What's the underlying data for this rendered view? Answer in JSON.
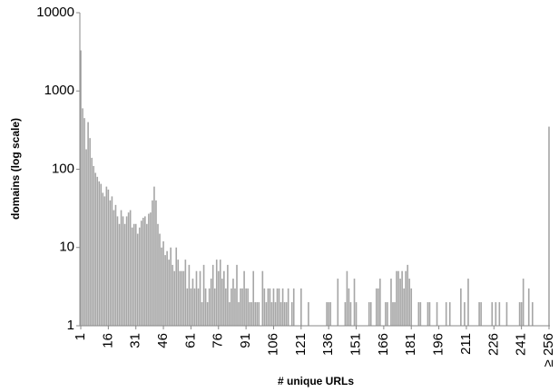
{
  "chart_data": {
    "type": "bar",
    "y_label": "domains (log scale)",
    "x_label": "# unique URLs",
    "log_scale": true,
    "grid": false,
    "color": "#a6a6a6",
    "x": [
      1,
      2,
      3,
      4,
      5,
      6,
      7,
      8,
      9,
      10,
      11,
      12,
      13,
      14,
      15,
      16,
      17,
      18,
      19,
      20,
      21,
      22,
      23,
      24,
      25,
      26,
      27,
      28,
      29,
      30,
      31,
      32,
      33,
      34,
      35,
      36,
      37,
      38,
      39,
      40,
      41,
      42,
      43,
      44,
      45,
      46,
      47,
      48,
      49,
      50,
      51,
      52,
      53,
      54,
      55,
      56,
      57,
      58,
      59,
      60,
      61,
      62,
      63,
      64,
      65,
      66,
      67,
      68,
      69,
      70,
      71,
      72,
      73,
      74,
      75,
      76,
      77,
      78,
      79,
      80,
      81,
      82,
      83,
      84,
      85,
      86,
      87,
      88,
      89,
      90,
      91,
      92,
      93,
      94,
      95,
      96,
      97,
      98,
      99,
      100,
      101,
      102,
      103,
      104,
      105,
      106,
      107,
      108,
      109,
      110,
      111,
      112,
      113,
      114,
      115,
      116,
      117,
      118,
      119,
      120,
      121,
      122,
      123,
      124,
      125,
      126,
      127,
      128,
      129,
      130,
      131,
      132,
      133,
      134,
      135,
      136,
      137,
      138,
      139,
      140,
      141,
      142,
      143,
      144,
      145,
      146,
      147,
      148,
      149,
      150,
      151,
      152,
      153,
      154,
      155,
      156,
      157,
      158,
      159,
      160,
      161,
      162,
      163,
      164,
      165,
      166,
      167,
      168,
      169,
      170,
      171,
      172,
      173,
      174,
      175,
      176,
      177,
      178,
      179,
      180,
      181,
      182,
      183,
      184,
      185,
      186,
      187,
      188,
      189,
      190,
      191,
      192,
      193,
      194,
      195,
      196,
      197,
      198,
      199,
      200,
      201,
      202,
      203,
      204,
      205,
      206,
      207,
      208,
      209,
      210,
      211,
      212,
      213,
      214,
      215,
      216,
      217,
      218,
      219,
      220,
      221,
      222,
      223,
      224,
      225,
      226,
      227,
      228,
      229,
      230,
      231,
      232,
      233,
      234,
      235,
      236,
      237,
      238,
      239,
      240,
      241,
      242,
      243,
      244,
      245,
      246,
      247,
      248,
      249,
      250,
      251,
      252,
      253,
      254,
      255,
      256
    ],
    "values": [
      3300,
      600,
      450,
      180,
      400,
      250,
      140,
      110,
      90,
      80,
      70,
      65,
      50,
      45,
      60,
      55,
      40,
      45,
      30,
      35,
      25,
      20,
      30,
      25,
      20,
      25,
      28,
      30,
      18,
      20,
      20,
      15,
      18,
      22,
      24,
      25,
      20,
      27,
      28,
      40,
      60,
      40,
      20,
      15,
      10,
      12,
      8,
      9,
      7,
      10,
      6,
      5,
      10,
      7,
      5,
      5,
      5,
      7,
      3,
      6,
      3,
      4,
      3,
      5,
      3,
      5,
      2,
      6,
      3,
      2,
      3,
      4,
      6,
      3,
      7,
      5,
      7,
      4,
      5,
      3,
      6,
      2,
      3,
      4,
      3,
      6,
      2,
      3,
      3,
      5,
      3,
      3,
      2,
      2,
      5,
      2,
      2,
      2,
      1,
      5,
      3,
      2,
      3,
      3,
      2,
      3,
      2,
      3,
      3,
      2,
      3,
      2,
      2,
      3,
      1,
      2,
      3,
      1,
      null,
      null,
      3,
      null,
      null,
      null,
      2,
      null,
      null,
      null,
      null,
      1,
      null,
      null,
      null,
      null,
      2,
      2,
      2,
      null,
      null,
      null,
      4,
      null,
      null,
      null,
      2,
      5,
      3,
      2,
      null,
      4,
      2,
      null,
      null,
      null,
      null,
      null,
      null,
      2,
      2,
      null,
      null,
      3,
      3,
      4,
      null,
      null,
      2,
      2,
      null,
      4,
      2,
      2,
      5,
      5,
      4,
      5,
      3,
      5,
      6,
      4,
      3,
      null,
      null,
      null,
      2,
      2,
      null,
      null,
      null,
      2,
      2,
      null,
      null,
      null,
      2,
      null,
      null,
      null,
      null,
      2,
      null,
      2,
      null,
      null,
      null,
      null,
      null,
      3,
      null,
      2,
      null,
      4,
      null,
      null,
      null,
      null,
      null,
      2,
      2,
      null,
      null,
      1,
      null,
      null,
      2,
      null,
      2,
      null,
      2,
      null,
      null,
      null,
      2,
      null,
      null,
      null,
      null,
      1,
      null,
      2,
      2,
      4,
      null,
      null,
      3,
      null,
      2,
      null,
      null,
      null,
      null,
      null,
      null,
      null,
      null,
      350
    ],
    "xlim": [
      0.5,
      256.5
    ],
    "xticks": [
      1,
      16,
      31,
      46,
      61,
      76,
      91,
      106,
      121,
      136,
      151,
      166,
      181,
      196,
      211,
      226,
      241,
      {
        "value": 256,
        "label": "≥ 256"
      }
    ],
    "ylim": [
      1,
      10000
    ],
    "yticks": [
      1,
      10,
      100,
      1000,
      10000
    ]
  }
}
